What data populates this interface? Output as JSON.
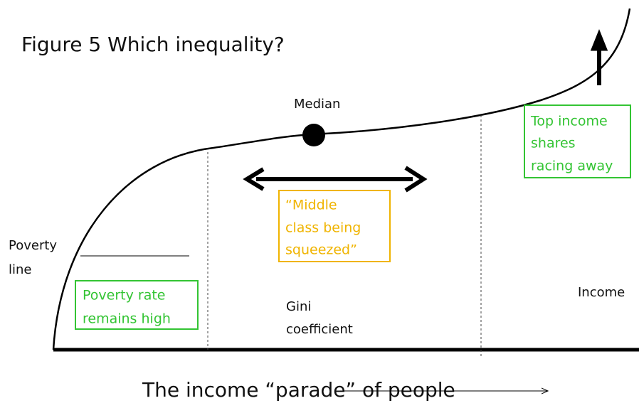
{
  "title": "Figure 5  Which inequality?",
  "median_label": "Median",
  "top_income_box": {
    "lines": [
      "Top income",
      "shares",
      "racing away"
    ]
  },
  "middle_class_box": {
    "lines": [
      "“Middle",
      "class being",
      "squeezed”"
    ]
  },
  "poverty_line_label": {
    "lines": [
      "Poverty",
      "line"
    ]
  },
  "poverty_rate_box": {
    "lines": [
      "Poverty rate",
      "remains high"
    ]
  },
  "gini_label": {
    "lines": [
      "Gini",
      "coefficient"
    ]
  },
  "income_label": "Income",
  "x_axis_label": "The income “parade” of people"
}
